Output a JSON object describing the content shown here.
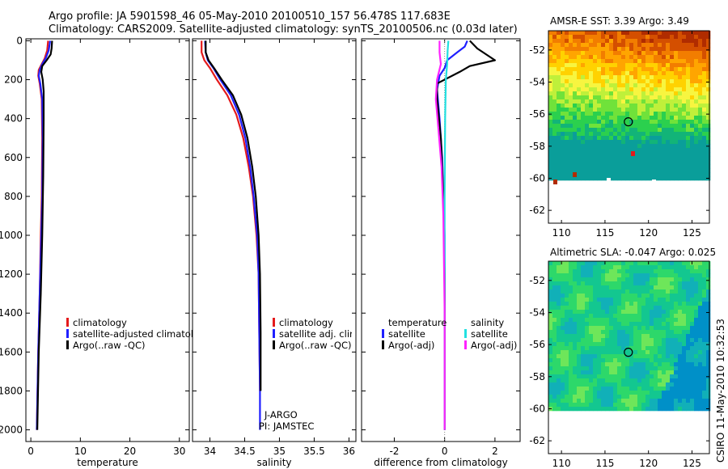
{
  "header": {
    "line1": "Argo profile: JA 5901598_46 05-May-2010 20100510_157 56.478S 117.683E",
    "line2": "Climatology: CARS2009. Satellite-adjusted climatology: synTS_20100506.nc (0.03d later)"
  },
  "colors": {
    "climatology": "#e41a1c",
    "satellite": "#1f1fff",
    "argo": "#000000",
    "satellite_salinity": "#22e0e0",
    "argo_salinity_adj": "#ff22ff"
  },
  "chart_data": [
    {
      "type": "line",
      "id": "temperature",
      "xlabel": "temperature",
      "ylabel": "",
      "xlim": [
        -1,
        32
      ],
      "ylim": [
        2060,
        -10
      ],
      "x_ticks": [
        0,
        10,
        20,
        30
      ],
      "y_ticks": [
        0,
        200,
        400,
        600,
        800,
        1000,
        1200,
        1400,
        1600,
        1800,
        2000
      ],
      "legend": [
        "climatology",
        "satellite-adjusted climatology",
        "Argo(..raw -QC)"
      ],
      "series": [
        {
          "name": "climatology",
          "color_key": "climatology",
          "points": [
            [
              3.5,
              0
            ],
            [
              3.3,
              50
            ],
            [
              2.8,
              90
            ],
            [
              2.2,
              120
            ],
            [
              1.6,
              150
            ],
            [
              1.5,
              180
            ],
            [
              1.8,
              220
            ],
            [
              2.2,
              300
            ],
            [
              2.3,
              500
            ],
            [
              2.2,
              800
            ],
            [
              2.0,
              1000
            ],
            [
              1.8,
              1300
            ],
            [
              1.5,
              1600
            ],
            [
              1.2,
              2000
            ]
          ]
        },
        {
          "name": "satellite-adjusted climatology",
          "color_key": "satellite",
          "points": [
            [
              3.9,
              0
            ],
            [
              3.6,
              50
            ],
            [
              3.0,
              90
            ],
            [
              2.3,
              120
            ],
            [
              1.8,
              150
            ],
            [
              1.6,
              180
            ],
            [
              1.9,
              220
            ],
            [
              2.3,
              300
            ],
            [
              2.4,
              500
            ],
            [
              2.3,
              800
            ],
            [
              2.1,
              1000
            ],
            [
              1.8,
              1300
            ],
            [
              1.5,
              1600
            ],
            [
              1.2,
              2000
            ]
          ]
        },
        {
          "name": "Argo(..raw -QC)",
          "color_key": "argo",
          "points": [
            [
              4.3,
              0
            ],
            [
              4.2,
              40
            ],
            [
              4.0,
              70
            ],
            [
              3.2,
              100
            ],
            [
              2.3,
              130
            ],
            [
              2.1,
              160
            ],
            [
              2.4,
              200
            ],
            [
              2.6,
              260
            ],
            [
              2.6,
              400
            ],
            [
              2.5,
              700
            ],
            [
              2.3,
              1000
            ],
            [
              2.0,
              1300
            ],
            [
              1.6,
              1600
            ],
            [
              1.3,
              2000
            ]
          ]
        }
      ]
    },
    {
      "type": "line",
      "id": "salinity",
      "xlabel": "salinity",
      "annotation": [
        "J-ARGO",
        "PI: JAMSTEC"
      ],
      "xlim": [
        33.75,
        36.1
      ],
      "ylim": [
        2060,
        -10
      ],
      "x_ticks": [
        34,
        34.5,
        35,
        35.5,
        36
      ],
      "x_tick_labels": [
        "34",
        "34.5",
        "35",
        "35.5",
        "36"
      ],
      "legend": [
        "climatology",
        "satellite adj. clim.",
        "Argo(..raw -QC)"
      ],
      "series": [
        {
          "name": "climatology",
          "color_key": "climatology",
          "points": [
            [
              33.88,
              0
            ],
            [
              33.88,
              60
            ],
            [
              33.92,
              100
            ],
            [
              34.0,
              140
            ],
            [
              34.1,
              200
            ],
            [
              34.25,
              280
            ],
            [
              34.38,
              380
            ],
            [
              34.48,
              500
            ],
            [
              34.56,
              650
            ],
            [
              34.62,
              800
            ],
            [
              34.67,
              1000
            ],
            [
              34.7,
              1200
            ],
            [
              34.71,
              1500
            ],
            [
              34.72,
              1800
            ]
          ]
        },
        {
          "name": "satellite adj. clim.",
          "color_key": "satellite",
          "points": [
            [
              33.93,
              0
            ],
            [
              33.94,
              60
            ],
            [
              33.97,
              100
            ],
            [
              34.05,
              140
            ],
            [
              34.15,
              200
            ],
            [
              34.3,
              280
            ],
            [
              34.42,
              380
            ],
            [
              34.51,
              500
            ],
            [
              34.58,
              650
            ],
            [
              34.63,
              800
            ],
            [
              34.68,
              1000
            ],
            [
              34.7,
              1200
            ],
            [
              34.71,
              1500
            ],
            [
              34.72,
              1800
            ],
            [
              34.72,
              2000
            ]
          ]
        },
        {
          "name": "Argo(..raw -QC)",
          "color_key": "argo",
          "points": [
            [
              33.94,
              0
            ],
            [
              33.94,
              60
            ],
            [
              33.98,
              100
            ],
            [
              34.06,
              140
            ],
            [
              34.17,
              200
            ],
            [
              34.33,
              280
            ],
            [
              34.45,
              380
            ],
            [
              34.54,
              500
            ],
            [
              34.61,
              650
            ],
            [
              34.66,
              800
            ],
            [
              34.7,
              1000
            ],
            [
              34.72,
              1200
            ],
            [
              34.73,
              1500
            ],
            [
              34.73,
              1800
            ]
          ]
        }
      ]
    },
    {
      "type": "line",
      "id": "difference",
      "xlabel": "difference from climatology",
      "xlim": [
        -3.3,
        3.0
      ],
      "ylim": [
        2060,
        -10
      ],
      "x_ticks": [
        -2,
        0,
        2
      ],
      "legend_temperature_title": "temperature",
      "legend_salinity_title": "salinity",
      "legend_temperature": [
        "satellite",
        "Argo(-adj)"
      ],
      "legend_salinity": [
        "satellite",
        "Argo(-adj)"
      ],
      "series": [
        {
          "name": "temperature satellite",
          "color_key": "satellite",
          "points": [
            [
              0.9,
              0
            ],
            [
              0.8,
              30
            ],
            [
              0.5,
              60
            ],
            [
              0.1,
              100
            ],
            [
              0.0,
              140
            ],
            [
              -0.2,
              180
            ],
            [
              -0.3,
              250
            ],
            [
              -0.2,
              400
            ],
            [
              -0.1,
              600
            ],
            [
              0.0,
              1000
            ],
            [
              0.0,
              1500
            ],
            [
              0.0,
              2000
            ]
          ]
        },
        {
          "name": "temperature Argo(-adj)",
          "color_key": "argo",
          "points": [
            [
              1.0,
              0
            ],
            [
              1.3,
              40
            ],
            [
              2.0,
              100
            ],
            [
              1.0,
              130
            ],
            [
              0.6,
              160
            ],
            [
              -0.3,
              220
            ],
            [
              -0.3,
              300
            ],
            [
              -0.15,
              500
            ],
            [
              -0.05,
              800
            ],
            [
              0.0,
              1200
            ],
            [
              0.0,
              2000
            ]
          ]
        },
        {
          "name": "salinity satellite",
          "color_key": "satellite_salinity",
          "points": [
            [
              0.15,
              0
            ],
            [
              0.12,
              50
            ],
            [
              0.1,
              120
            ],
            [
              0.05,
              200
            ],
            [
              0.02,
              400
            ],
            [
              0.0,
              800
            ],
            [
              0.0,
              2000
            ]
          ]
        },
        {
          "name": "salinity Argo(-adj)",
          "color_key": "argo_salinity_adj",
          "points": [
            [
              -0.2,
              0
            ],
            [
              -0.2,
              60
            ],
            [
              -0.15,
              120
            ],
            [
              -0.3,
              200
            ],
            [
              -0.35,
              300
            ],
            [
              -0.25,
              450
            ],
            [
              -0.12,
              650
            ],
            [
              -0.05,
              900
            ],
            [
              0.0,
              1400
            ],
            [
              0.0,
              2000
            ]
          ]
        }
      ]
    },
    {
      "type": "heatmap",
      "id": "sst_map",
      "title": "AMSR-E SST: 3.39 Argo: 3.49",
      "xlim": [
        108.5,
        127
      ],
      "ylim": [
        -62.8,
        -50.8
      ],
      "x_ticks": [
        110,
        115,
        120,
        125
      ],
      "y_ticks": [
        -52,
        -54,
        -56,
        -58,
        -60,
        -62
      ],
      "data_extent_lat": [
        -60,
        -50.8
      ],
      "marker": {
        "lon": 117.683,
        "lat": -56.478
      },
      "palette": [
        "#0a9e9a",
        "#12b478",
        "#2bd04e",
        "#70e23a",
        "#bff03a",
        "#f7f540",
        "#ffd200",
        "#ffa500",
        "#f27d00",
        "#d44f00",
        "#b02c00"
      ]
    },
    {
      "type": "heatmap",
      "id": "sla_map",
      "title": "Altimetric SLA: -0.047 Argo: 0.025",
      "xlim": [
        108.5,
        127
      ],
      "ylim": [
        -62.8,
        -50.8
      ],
      "x_ticks": [
        110,
        115,
        120,
        125
      ],
      "y_ticks": [
        -52,
        -54,
        -56,
        -58,
        -60,
        -62
      ],
      "data_extent_lat": [
        -60,
        -50.8
      ],
      "marker": {
        "lon": 117.683,
        "lat": -56.478
      },
      "palette": [
        "#0090c8",
        "#11b0b8",
        "#13c790",
        "#2dd86a",
        "#6ee65a",
        "#b6f04a",
        "#f0f030"
      ]
    }
  ],
  "footer": {
    "credit": "CSIRO 11-May-2010 10:32:53"
  }
}
